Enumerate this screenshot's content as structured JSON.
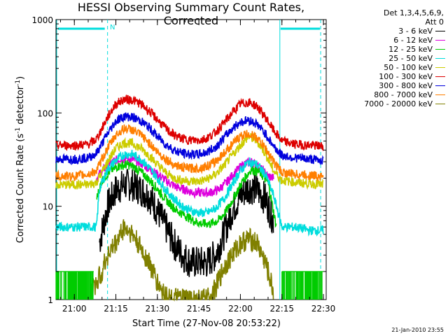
{
  "chart_data": {
    "type": "line",
    "title": "HESSI Observing Summary Count Rates, Corrected",
    "xlabel": "Start Time (27-Nov-08 20:53:22)",
    "ylabel_prefix": "Corrected Count Rate (s",
    "ylabel_mid": " detector",
    "ylabel_suffix": ")",
    "ylabel_sup": "-1",
    "yscale": "log",
    "ylim": [
      1,
      1000
    ],
    "xlim": [
      "20:53:22",
      "22:31:00"
    ],
    "x_ticks": [
      "21:00",
      "21:15",
      "21:30",
      "21:45",
      "22:00",
      "22:15",
      "22:30"
    ],
    "y_ticks": [
      "1",
      "10",
      "100",
      "1000"
    ],
    "legend_header": [
      "Det 1,3,4,5,6,9,",
      "Att 0"
    ],
    "night_marker": "N",
    "series": [
      {
        "name": "3 - 6 keV",
        "color": "#000000",
        "x": [
          "20:53:22",
          "21:02",
          "21:05",
          "21:08",
          "21:09",
          "21:12",
          "21:15",
          "21:18",
          "21:21",
          "21:24",
          "21:27",
          "21:30",
          "21:33",
          "21:36",
          "21:39",
          "21:42",
          "21:45",
          "21:48",
          "21:51",
          "21:54",
          "21:57",
          "22:00",
          "22:03",
          "22:06",
          "22:09",
          "22:12"
        ],
        "y": [
          null,
          null,
          null,
          null,
          4,
          10,
          15,
          17,
          17,
          15,
          13,
          9,
          6,
          4,
          3,
          2.5,
          2.5,
          2.5,
          3,
          5,
          9,
          13,
          16,
          15,
          12,
          7
        ]
      },
      {
        "name": "6 - 12 keV",
        "color": "#dd00dd",
        "x": [
          "21:08",
          "21:10",
          "21:13",
          "21:16",
          "21:19",
          "21:22",
          "21:25",
          "21:28",
          "21:31",
          "21:34",
          "21:37",
          "21:40",
          "21:43",
          "21:46",
          "21:49",
          "21:52",
          "21:55",
          "21:58",
          "22:01",
          "22:04",
          "22:07",
          "22:10",
          "22:12"
        ],
        "y": [
          20,
          24,
          29,
          32,
          33,
          31,
          28,
          24,
          21,
          18,
          16,
          15,
          14,
          14,
          14,
          15,
          18,
          23,
          28,
          30,
          26,
          21,
          20
        ]
      },
      {
        "name": "12 - 25 keV",
        "color": "#00cc00",
        "x": [
          "21:08",
          "21:10",
          "21:13",
          "21:16",
          "21:19",
          "21:22",
          "21:25",
          "21:28",
          "21:31",
          "21:34",
          "21:37",
          "21:40",
          "21:43",
          "21:46",
          "21:49",
          "21:52",
          "21:55",
          "21:58",
          "22:01",
          "22:04",
          "22:07",
          "22:10",
          "22:13"
        ],
        "y": [
          12,
          19,
          24,
          27,
          28,
          26,
          22,
          18,
          14,
          11,
          9,
          8,
          7,
          6.5,
          6.5,
          7,
          9,
          13,
          19,
          25,
          23,
          18,
          6
        ]
      },
      {
        "name": "25 - 50 keV",
        "color": "#00dddd",
        "x": [
          "20:53:22",
          "21:00",
          "21:05",
          "21:08",
          "21:09",
          "21:12",
          "21:15",
          "21:18",
          "21:21",
          "21:24",
          "21:27",
          "21:30",
          "21:33",
          "21:36",
          "21:39",
          "21:42",
          "21:45",
          "21:48",
          "21:51",
          "21:54",
          "21:57",
          "22:00",
          "22:03",
          "22:06",
          "22:09",
          "22:12",
          "22:15",
          "22:20",
          "22:25",
          "22:30"
        ],
        "y": [
          6,
          6,
          6,
          6,
          15,
          25,
          31,
          36,
          36,
          32,
          26,
          20,
          15,
          12,
          10,
          9,
          8.5,
          8.5,
          9.5,
          12,
          17,
          24,
          30,
          28,
          22,
          13,
          6,
          6,
          5.5,
          5.5
        ]
      },
      {
        "name": "50 - 100 keV",
        "color": "#cccc00",
        "x": [
          "20:53:22",
          "21:00",
          "21:05",
          "21:08",
          "21:12",
          "21:15",
          "21:18",
          "21:21",
          "21:24",
          "21:27",
          "21:30",
          "21:33",
          "21:36",
          "21:39",
          "21:42",
          "21:45",
          "21:48",
          "21:51",
          "21:54",
          "21:57",
          "22:00",
          "22:03",
          "22:06",
          "22:09",
          "22:12",
          "22:15",
          "22:20",
          "22:25",
          "22:30"
        ],
        "y": [
          17,
          17,
          17,
          18,
          30,
          42,
          48,
          47,
          42,
          35,
          28,
          23,
          20,
          19,
          18.5,
          18.5,
          19.5,
          22,
          27,
          35,
          45,
          56,
          50,
          37,
          24,
          19,
          18,
          17.5,
          17
        ]
      },
      {
        "name": "100 - 300 keV",
        "color": "#dd0000",
        "x": [
          "20:53:22",
          "21:00",
          "21:05",
          "21:08",
          "21:12",
          "21:15",
          "21:18",
          "21:21",
          "21:24",
          "21:27",
          "21:30",
          "21:33",
          "21:36",
          "21:39",
          "21:42",
          "21:45",
          "21:48",
          "21:51",
          "21:54",
          "21:57",
          "22:00",
          "22:03",
          "22:06",
          "22:09",
          "22:12",
          "22:15",
          "22:20",
          "22:25",
          "22:30"
        ],
        "y": [
          45,
          45,
          46,
          52,
          90,
          125,
          140,
          138,
          125,
          105,
          85,
          68,
          58,
          53,
          51,
          51,
          54,
          62,
          78,
          100,
          125,
          130,
          118,
          90,
          65,
          50,
          46,
          45,
          44
        ]
      },
      {
        "name": "300 - 800 keV",
        "color": "#0000dd",
        "x": [
          "20:53:22",
          "21:00",
          "21:05",
          "21:08",
          "21:12",
          "21:15",
          "21:18",
          "21:21",
          "21:24",
          "21:27",
          "21:30",
          "21:33",
          "21:36",
          "21:39",
          "21:42",
          "21:45",
          "21:48",
          "21:51",
          "21:54",
          "21:57",
          "22:00",
          "22:03",
          "22:06",
          "22:09",
          "22:12",
          "22:15",
          "22:20",
          "22:25",
          "22:30"
        ],
        "y": [
          32,
          32,
          33,
          37,
          60,
          82,
          92,
          90,
          82,
          70,
          56,
          46,
          40,
          37,
          36,
          36,
          38,
          43,
          54,
          68,
          80,
          84,
          76,
          60,
          44,
          35,
          33,
          32,
          31
        ]
      },
      {
        "name": "800 - 7000 keV",
        "color": "#ff7f00",
        "x": [
          "20:53:22",
          "21:00",
          "21:05",
          "21:08",
          "21:12",
          "21:15",
          "21:18",
          "21:21",
          "21:24",
          "21:27",
          "21:30",
          "21:33",
          "21:36",
          "21:39",
          "21:42",
          "21:45",
          "21:48",
          "21:51",
          "21:54",
          "21:57",
          "22:00",
          "22:03",
          "22:06",
          "22:09",
          "22:12",
          "22:15",
          "22:20",
          "22:25",
          "22:30"
        ],
        "y": [
          21,
          21,
          22,
          24,
          42,
          58,
          68,
          66,
          58,
          48,
          38,
          32,
          28,
          26,
          25.5,
          25.5,
          27,
          30,
          37,
          46,
          56,
          60,
          54,
          42,
          30,
          23,
          22,
          21.5,
          21
        ]
      },
      {
        "name": "7000 - 20000 keV",
        "color": "#808000",
        "x": [
          "20:53:22",
          "21:00",
          "21:04",
          "21:06",
          "21:08",
          "21:10",
          "21:12",
          "21:15",
          "21:18",
          "21:21",
          "21:24",
          "21:27",
          "21:30",
          "21:32",
          "21:35",
          "21:38",
          "21:42",
          "21:45",
          "21:48",
          "21:51",
          "21:54",
          "21:57",
          "22:00",
          "22:03",
          "22:06",
          "22:09",
          "22:12",
          "22:14",
          "22:20",
          "22:30"
        ],
        "y": [
          null,
          null,
          null,
          1.2,
          1.5,
          2,
          3,
          4,
          6,
          5,
          3.5,
          2.5,
          1.5,
          1.2,
          1,
          1,
          1,
          1,
          1,
          1.3,
          2.2,
          3,
          4,
          4.5,
          4,
          2.5,
          1.2,
          null,
          null,
          null
        ]
      }
    ],
    "noise_floor": {
      "color": "#00cc00",
      "y": 2,
      "ranges": [
        [
          "20:53:22",
          "21:07"
        ],
        [
          "22:15",
          "22:30"
        ]
      ]
    },
    "saa_marks": {
      "color": "#00dddd",
      "solid": [
        "20:53:22",
        "22:14"
      ],
      "dashed": [
        "21:12",
        "22:29"
      ]
    }
  },
  "footer": {
    "date": "21-Jan-2010 23:55"
  }
}
